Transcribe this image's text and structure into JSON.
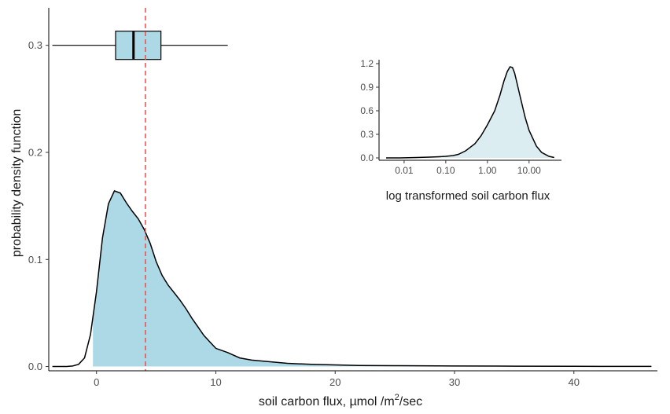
{
  "chart_data": [
    {
      "type": "area",
      "title": "",
      "xlabel": "soil carbon flux,  µmol /m²/sec",
      "ylabel": "probability density function",
      "xlim": [
        -4,
        47
      ],
      "ylim": [
        -0.004,
        0.335
      ],
      "xticks": [
        0,
        10,
        20,
        30,
        40
      ],
      "xtick_labels": [
        "0",
        "10",
        "20",
        "30",
        "40"
      ],
      "yticks": [
        0.0,
        0.1,
        0.2,
        0.3
      ],
      "ytick_labels": [
        "0.0",
        "0.1",
        "0.2",
        "0.3"
      ],
      "grid": false,
      "fill_color": "#add8e6",
      "fill_range": [
        -0.3,
        46.5
      ],
      "series": [
        {
          "x": [
            -3.7,
            -2.5,
            -2,
            -1.5,
            -1,
            -0.5,
            0,
            0.5,
            1,
            1.5,
            2,
            2.5,
            3,
            3.5,
            4,
            4.5,
            5,
            5.5,
            6,
            6.5,
            7,
            7.5,
            8,
            8.5,
            9,
            9.5,
            10,
            11,
            12,
            13,
            14,
            15,
            16,
            18,
            20,
            22,
            25,
            30,
            35,
            40,
            46.5
          ],
          "y": [
            0.0,
            0.0,
            0.0005,
            0.002,
            0.008,
            0.03,
            0.07,
            0.12,
            0.152,
            0.164,
            0.162,
            0.153,
            0.145,
            0.138,
            0.128,
            0.115,
            0.098,
            0.085,
            0.076,
            0.069,
            0.062,
            0.054,
            0.045,
            0.037,
            0.029,
            0.023,
            0.017,
            0.013,
            0.008,
            0.006,
            0.005,
            0.004,
            0.003,
            0.002,
            0.0015,
            0.001,
            0.0008,
            0.0005,
            0.0003,
            0.0002,
            0.0001
          ]
        }
      ]
    },
    {
      "type": "box",
      "orientation": "horizontal",
      "y_position": 0.3,
      "whisker_low": -3.7,
      "q1": 1.6,
      "median": 3.1,
      "q3": 5.4,
      "whisker_high": 11.0,
      "fill_color": "#add8e6"
    },
    {
      "type": "reference_line",
      "orientation": "vertical",
      "x": 4.1,
      "style": "dashed",
      "color": "#e05252"
    },
    {
      "type": "area",
      "inset": true,
      "title": "",
      "xlabel": "log transformed soil carbon flux",
      "ylabel": "",
      "x_scale": "log10",
      "xlim": [
        0.0025,
        60
      ],
      "ylim": [
        -0.03,
        1.25
      ],
      "xticks": [
        0.01,
        0.1,
        1,
        10
      ],
      "xtick_labels": [
        "0.01",
        "0.10",
        "1.00",
        "10.00"
      ],
      "yticks": [
        0.0,
        0.3,
        0.6,
        0.9,
        1.2
      ],
      "ytick_labels": [
        "0.0",
        "0.3",
        "0.6",
        "0.9",
        "1.2"
      ],
      "grid": false,
      "fill_color": "#dcedf2",
      "series": [
        {
          "x": [
            0.0037,
            0.008,
            0.02,
            0.04,
            0.07,
            0.1,
            0.15,
            0.2,
            0.3,
            0.5,
            0.7,
            1.0,
            1.5,
            2.0,
            2.5,
            3.0,
            3.5,
            4.0,
            4.5,
            5.0,
            6.0,
            7.0,
            8.0,
            10.0,
            15.0,
            20.0,
            30.0,
            40.0
          ],
          "y": [
            0.0,
            0.0,
            0.005,
            0.01,
            0.015,
            0.02,
            0.03,
            0.045,
            0.09,
            0.18,
            0.28,
            0.42,
            0.6,
            0.8,
            0.98,
            1.1,
            1.16,
            1.15,
            1.08,
            0.98,
            0.8,
            0.65,
            0.52,
            0.35,
            0.15,
            0.07,
            0.02,
            0.005
          ]
        }
      ]
    }
  ]
}
